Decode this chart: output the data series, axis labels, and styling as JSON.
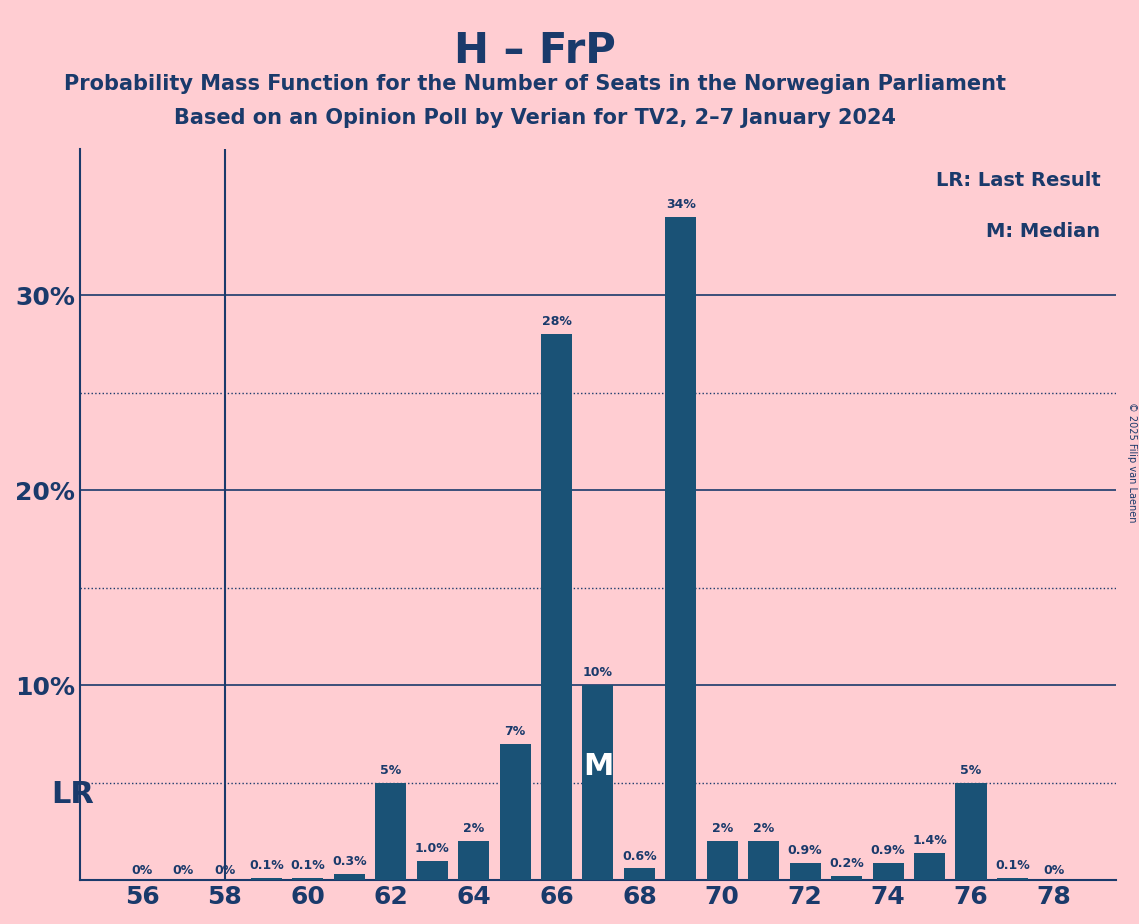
{
  "title": "H – FrP",
  "subtitle1": "Probability Mass Function for the Number of Seats in the Norwegian Parliament",
  "subtitle2": "Based on an Opinion Poll by Verian for TV2, 2–7 January 2024",
  "copyright": "© 2025 Filip van Laenen",
  "legend_lr": "LR: Last Result",
  "legend_m": "M: Median",
  "background_color": "#FFCDD2",
  "bar_color": "#1a5276",
  "text_color": "#1a3a6b",
  "seats": [
    56,
    57,
    58,
    59,
    60,
    61,
    62,
    63,
    64,
    65,
    66,
    67,
    68,
    69,
    70,
    71,
    72,
    73,
    74,
    75,
    76,
    77,
    78
  ],
  "probs": [
    0.0,
    0.0,
    0.0,
    0.001,
    0.001,
    0.003,
    0.05,
    0.01,
    0.02,
    0.07,
    0.28,
    0.1,
    0.006,
    0.34,
    0.02,
    0.02,
    0.009,
    0.002,
    0.009,
    0.014,
    0.05,
    0.001,
    0.0
  ],
  "labels": [
    "0%",
    "0%",
    "0%",
    "0.1%",
    "0.1%",
    "0.3%",
    "5%",
    "1.0%",
    "2%",
    "7%",
    "28%",
    "10%",
    "0.6%",
    "34%",
    "2%",
    "2%",
    "0.9%",
    "0.2%",
    "0.9%",
    "1.4%",
    "5%",
    "0.1%",
    "0%"
  ],
  "lr_seat": 58,
  "median_seat": 67,
  "ylim": [
    0,
    0.375
  ],
  "xlim": [
    54.5,
    79.5
  ],
  "xticks": [
    56,
    58,
    60,
    62,
    64,
    66,
    68,
    70,
    72,
    74,
    76,
    78
  ],
  "ytick_solid": [
    0.1,
    0.2,
    0.3
  ],
  "ytick_dotted": [
    0.05,
    0.15,
    0.25
  ],
  "ytick_labels": [
    "10%",
    "20%",
    "30%"
  ]
}
